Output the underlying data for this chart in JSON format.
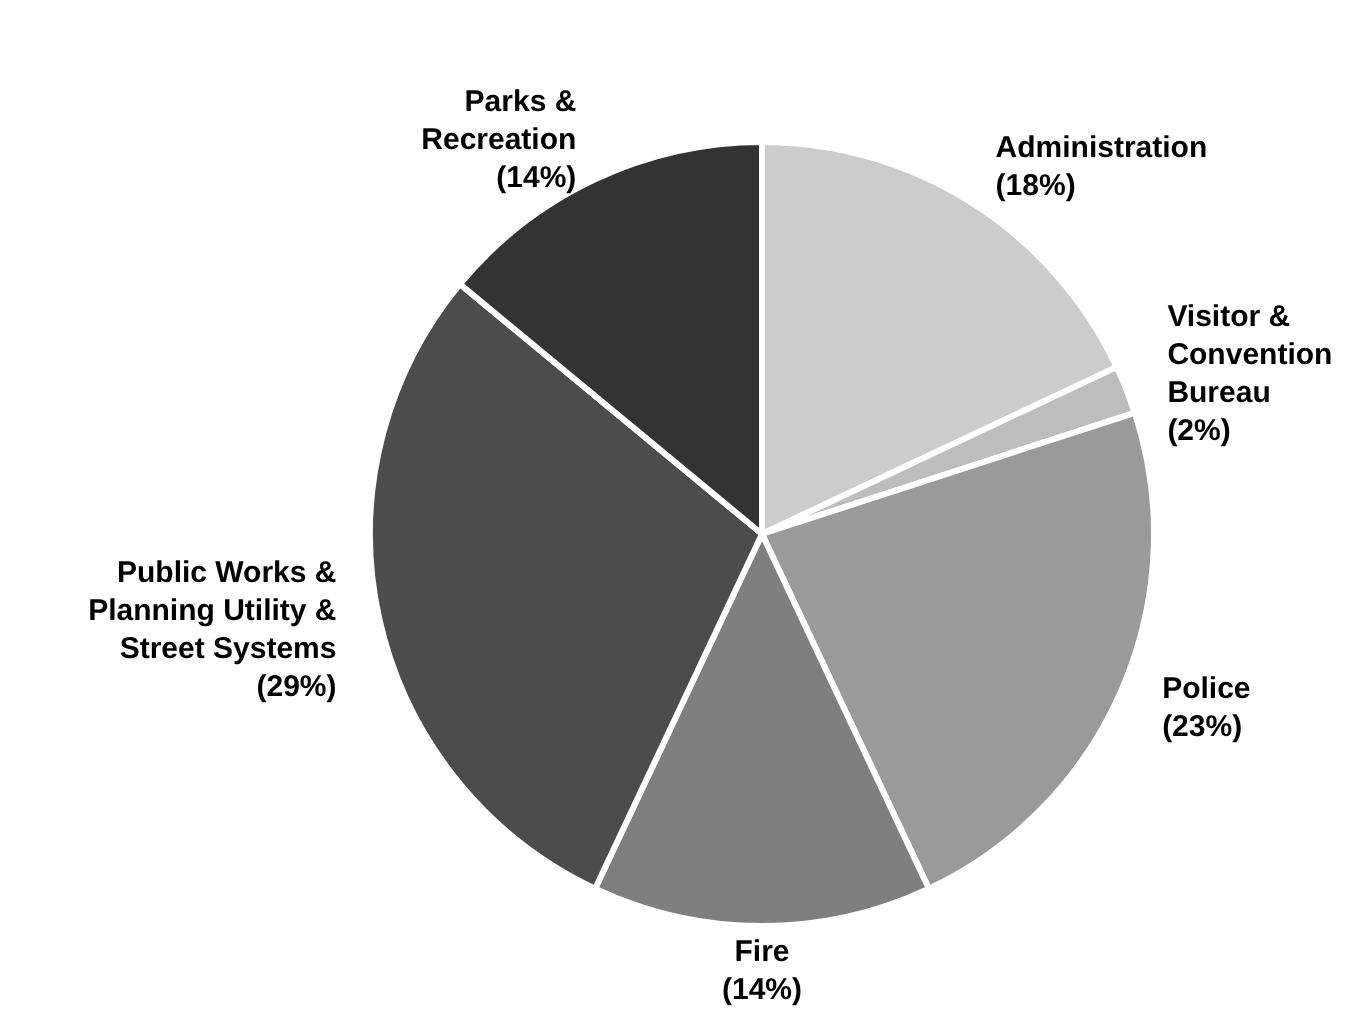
{
  "chart_data": {
    "type": "pie",
    "categories": [
      "Administration",
      "Visitor & Convention Bureau",
      "Police",
      "Fire",
      "Public Works & Planning Utility & Street Systems",
      "Parks & Recreation"
    ],
    "values": [
      18,
      2,
      23,
      14,
      29,
      14
    ],
    "value_labels": [
      "(18%)",
      "(2%)",
      "(23%)",
      "(14%)",
      "(29%)",
      "(14%)"
    ],
    "colors": [
      "#cccccc",
      "#bdbdbd",
      "#9a9a9a",
      "#7f7f7f",
      "#4c4c4c",
      "#333333"
    ],
    "legend": false
  }
}
